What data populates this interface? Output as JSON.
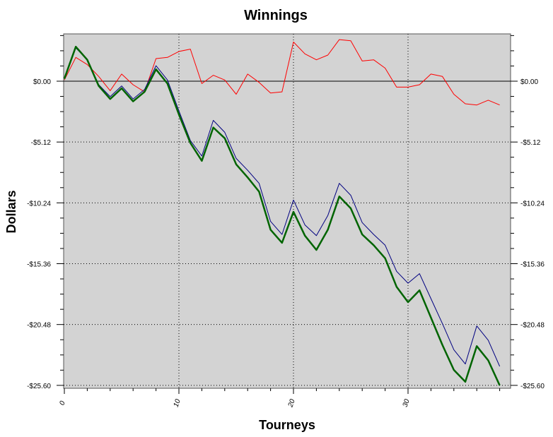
{
  "chart_data": {
    "type": "line",
    "title": "Winnings",
    "xlabel": "Tourneys",
    "ylabel": "Dollars",
    "xlim": [
      0,
      39
    ],
    "ylim": [
      -25.6,
      4
    ],
    "x_ticks": [
      0,
      10,
      20,
      30
    ],
    "x_tick_labels": [
      "0",
      "10",
      "20",
      "30"
    ],
    "y_ticks": [
      0,
      -5.12,
      -10.24,
      -15.36,
      -20.48,
      -25.6
    ],
    "y_tick_labels": [
      "$0.00",
      "-$5.12",
      "-$10.24",
      "-$15.36",
      "-$20.48",
      "-$25.60"
    ],
    "grid": true,
    "colors": {
      "plot_background": "#d3d3d3",
      "zero_line": "#000000",
      "grid": "#000000"
    },
    "series": [
      {
        "color": "#ff0000",
        "width": 1,
        "x": [
          0,
          1,
          2,
          3,
          4,
          5,
          6,
          7,
          8,
          9,
          10,
          11,
          12,
          13,
          14,
          15,
          16,
          17,
          18,
          19,
          20,
          21,
          22,
          23,
          24,
          25,
          26,
          27,
          28,
          29,
          30,
          31,
          32,
          33,
          34,
          35,
          36,
          37,
          38
        ],
        "values": [
          0.1,
          2.0,
          1.4,
          0.4,
          -0.8,
          0.6,
          -0.3,
          -0.9,
          1.9,
          2.0,
          2.5,
          2.7,
          -0.2,
          0.5,
          0.1,
          -1.1,
          0.6,
          -0.1,
          -1.0,
          -0.9,
          3.3,
          2.3,
          1.8,
          2.2,
          3.5,
          3.4,
          1.7,
          1.8,
          1.1,
          -0.5,
          -0.5,
          -0.3,
          0.6,
          0.4,
          -1.1,
          -1.9,
          -2.0,
          -1.6,
          -2.0
        ]
      },
      {
        "color": "#000080",
        "width": 1,
        "x": [
          0,
          1,
          2,
          3,
          4,
          5,
          6,
          7,
          8,
          9,
          10,
          11,
          12,
          13,
          14,
          15,
          16,
          17,
          18,
          19,
          20,
          21,
          22,
          23,
          24,
          25,
          26,
          27,
          28,
          29,
          30,
          31,
          32,
          33,
          34,
          35,
          36,
          37,
          38
        ],
        "values": [
          0.3,
          2.8,
          1.8,
          -0.3,
          -1.3,
          -0.4,
          -1.5,
          -0.7,
          1.3,
          0.1,
          -2.5,
          -5.0,
          -6.3,
          -3.3,
          -4.3,
          -6.5,
          -7.5,
          -8.6,
          -11.8,
          -12.9,
          -10.0,
          -12.1,
          -13.0,
          -11.3,
          -8.6,
          -9.6,
          -11.9,
          -12.9,
          -13.8,
          -16.0,
          -17.0,
          -16.2,
          -18.3,
          -20.4,
          -22.6,
          -23.8,
          -20.6,
          -21.8,
          -24.0
        ]
      },
      {
        "color": "#006400",
        "width": 2.5,
        "x": [
          0,
          1,
          2,
          3,
          4,
          5,
          6,
          7,
          8,
          9,
          10,
          11,
          12,
          13,
          14,
          15,
          16,
          17,
          18,
          19,
          20,
          21,
          22,
          23,
          24,
          25,
          26,
          27,
          28,
          29,
          30,
          31,
          32,
          33,
          34,
          35,
          36,
          37,
          38
        ],
        "values": [
          0.2,
          2.9,
          1.8,
          -0.4,
          -1.5,
          -0.6,
          -1.7,
          -0.9,
          1.0,
          -0.2,
          -2.8,
          -5.2,
          -6.7,
          -3.9,
          -4.8,
          -7.0,
          -8.1,
          -9.3,
          -12.5,
          -13.6,
          -11.0,
          -13.0,
          -14.2,
          -12.5,
          -9.7,
          -10.7,
          -12.9,
          -13.8,
          -14.9,
          -17.3,
          -18.6,
          -17.6,
          -19.9,
          -22.2,
          -24.3,
          -25.3,
          -22.3,
          -23.5,
          -25.6
        ]
      }
    ]
  }
}
